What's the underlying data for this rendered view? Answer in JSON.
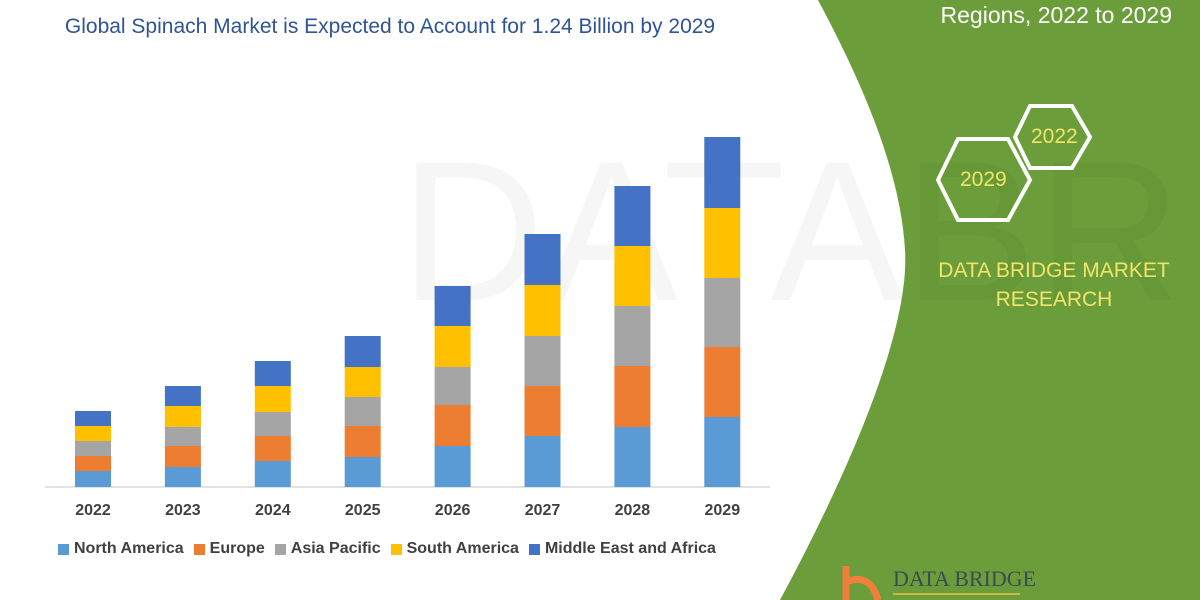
{
  "title": "Global Spinach Market is Expected to Account for 1.24 Billion by 2029",
  "side_panel": {
    "heading": "Regions, 2022 to 2029",
    "hex_years": [
      "2022",
      "2029"
    ],
    "brand": "DATA BRIDGE MARKET RESEARCH",
    "logo_text": "DATA BRIDGE",
    "green": "#6b9e3a",
    "accent_text": "#f2e36a"
  },
  "chart_data": {
    "type": "bar",
    "stacked": true,
    "categories": [
      "2022",
      "2023",
      "2024",
      "2025",
      "2026",
      "2027",
      "2028",
      "2029"
    ],
    "series": [
      {
        "name": "North America",
        "color": "#5b9bd5",
        "values": [
          16,
          20,
          26,
          30,
          41,
          51,
          60,
          70
        ]
      },
      {
        "name": "Europe",
        "color": "#ed7d31",
        "values": [
          15,
          21,
          25,
          31,
          41,
          50,
          61,
          70
        ]
      },
      {
        "name": "Asia Pacific",
        "color": "#a5a5a5",
        "values": [
          15,
          19,
          24,
          29,
          38,
          50,
          60,
          69
        ]
      },
      {
        "name": "South America",
        "color": "#ffc000",
        "values": [
          15,
          21,
          26,
          30,
          41,
          51,
          60,
          70
        ]
      },
      {
        "name": "Middle East and Africa",
        "color": "#4472c4",
        "values": [
          15,
          20,
          25,
          31,
          40,
          51,
          60,
          71
        ]
      }
    ],
    "y_axis_shown": false,
    "grid": false,
    "legend_position": "bottom"
  }
}
